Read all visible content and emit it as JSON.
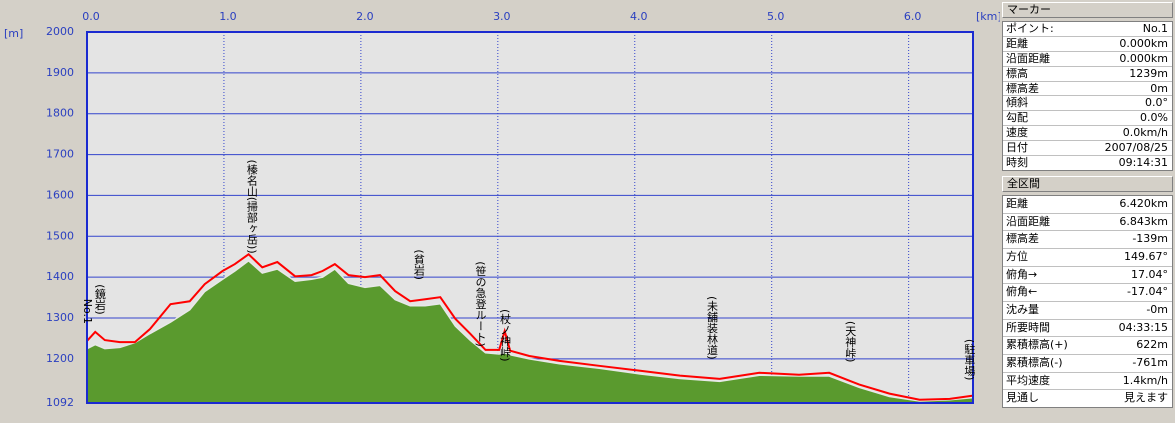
{
  "chart_data": {
    "type": "line",
    "y_label": "[m]",
    "x_label": "[km]",
    "xlim": [
      0,
      6.47
    ],
    "ylim": [
      1092,
      2000
    ],
    "xticks": [
      {
        "value": 0,
        "label": "0.0"
      },
      {
        "value": 1,
        "label": "1.0"
      },
      {
        "value": 2,
        "label": "2.0"
      },
      {
        "value": 3,
        "label": "3.0"
      },
      {
        "value": 4,
        "label": "4.0"
      },
      {
        "value": 5,
        "label": "5.0"
      },
      {
        "value": 6,
        "label": "6.0"
      }
    ],
    "yticks": [
      1092,
      1200,
      1300,
      1400,
      1500,
      1600,
      1700,
      1800,
      1900,
      2000
    ],
    "grid": true,
    "x": [
      0,
      0.06,
      0.13,
      0.24,
      0.35,
      0.46,
      0.61,
      0.75,
      0.86,
      0.99,
      1.08,
      1.18,
      1.28,
      1.39,
      1.52,
      1.64,
      1.72,
      1.81,
      1.91,
      2.03,
      2.14,
      2.25,
      2.36,
      2.47,
      2.58,
      2.69,
      2.8,
      2.91,
      3.01,
      3.05,
      3.09,
      3.23,
      3.45,
      3.74,
      4.04,
      4.33,
      4.62,
      4.91,
      5.2,
      5.42,
      5.64,
      5.86,
      6.08,
      6.3,
      6.47
    ],
    "series": [
      {
        "kind": "area",
        "color": "#5a9a2e",
        "values": [
          1225,
          1235,
          1225,
          1228,
          1240,
          1262,
          1290,
          1320,
          1365,
          1395,
          1415,
          1440,
          1410,
          1420,
          1390,
          1395,
          1400,
          1420,
          1385,
          1375,
          1380,
          1345,
          1330,
          1330,
          1335,
          1280,
          1245,
          1215,
          1212,
          1215,
          1210,
          1200,
          1188,
          1177,
          1163,
          1152,
          1145,
          1160,
          1158,
          1158,
          1130,
          1108,
          1097,
          1100,
          1105
        ]
      },
      {
        "kind": "line",
        "color": "#ff0000",
        "values": [
          1244,
          1266,
          1246,
          1241,
          1241,
          1273,
          1334,
          1341,
          1383,
          1415,
          1432,
          1456,
          1424,
          1437,
          1402,
          1405,
          1415,
          1432,
          1405,
          1400,
          1405,
          1366,
          1341,
          1346,
          1351,
          1298,
          1261,
          1222,
          1222,
          1268,
          1220,
          1207,
          1195,
          1183,
          1171,
          1159,
          1151,
          1166,
          1161,
          1166,
          1137,
          1115,
          1100,
          1102,
          1110
        ]
      }
    ],
    "annotations": [
      {
        "text": "No.1",
        "x": 0.0,
        "y": 1347
      },
      {
        "text": "(鏡岩)",
        "x": 0.09,
        "y": 1383
      },
      {
        "text": "(榛名山(掃部ヶ岳))",
        "x": 1.2,
        "y": 1688
      },
      {
        "text": "(貧岩)",
        "x": 2.42,
        "y": 1468
      },
      {
        "text": "(笹の急登ルート)",
        "x": 2.87,
        "y": 1439
      },
      {
        "text": "(杖ノ神峠)",
        "x": 3.05,
        "y": 1322
      },
      {
        "text": "(未舗装林道)",
        "x": 4.56,
        "y": 1354
      },
      {
        "text": "(天神峠)",
        "x": 5.57,
        "y": 1293
      },
      {
        "text": "(駐車場)",
        "x": 6.44,
        "y": 1249
      }
    ]
  },
  "panel": {
    "marker_title": "マーカー",
    "marker_rows": [
      [
        "ポイント:",
        "No.1"
      ],
      [
        "距離",
        "0.000km"
      ],
      [
        "沿面距離",
        "0.000km"
      ],
      [
        "標高",
        "1239m"
      ],
      [
        "標高差",
        "0m"
      ],
      [
        "傾斜",
        "0.0°"
      ],
      [
        "勾配",
        "0.0%"
      ],
      [
        "速度",
        "0.0km/h"
      ],
      [
        "日付",
        "2007/08/25"
      ],
      [
        "時刻",
        "09:14:31"
      ]
    ],
    "all_title": "全区間",
    "all_rows": [
      [
        "距離",
        "6.420km"
      ],
      [
        "沿面距離",
        "6.843km"
      ],
      [
        "標高差",
        "-139m"
      ],
      [
        "方位",
        "149.67°"
      ],
      [
        "俯角→",
        "17.04°"
      ],
      [
        "俯角←",
        "-17.04°"
      ],
      [
        "沈み量",
        "-0m"
      ],
      [
        "所要時間",
        "04:33:15"
      ],
      [
        "累積標高(+)",
        "622m"
      ],
      [
        "累積標高(-)",
        "-761m"
      ],
      [
        "平均速度",
        "1.4km/h"
      ],
      [
        "見通し",
        "見えます"
      ]
    ]
  }
}
